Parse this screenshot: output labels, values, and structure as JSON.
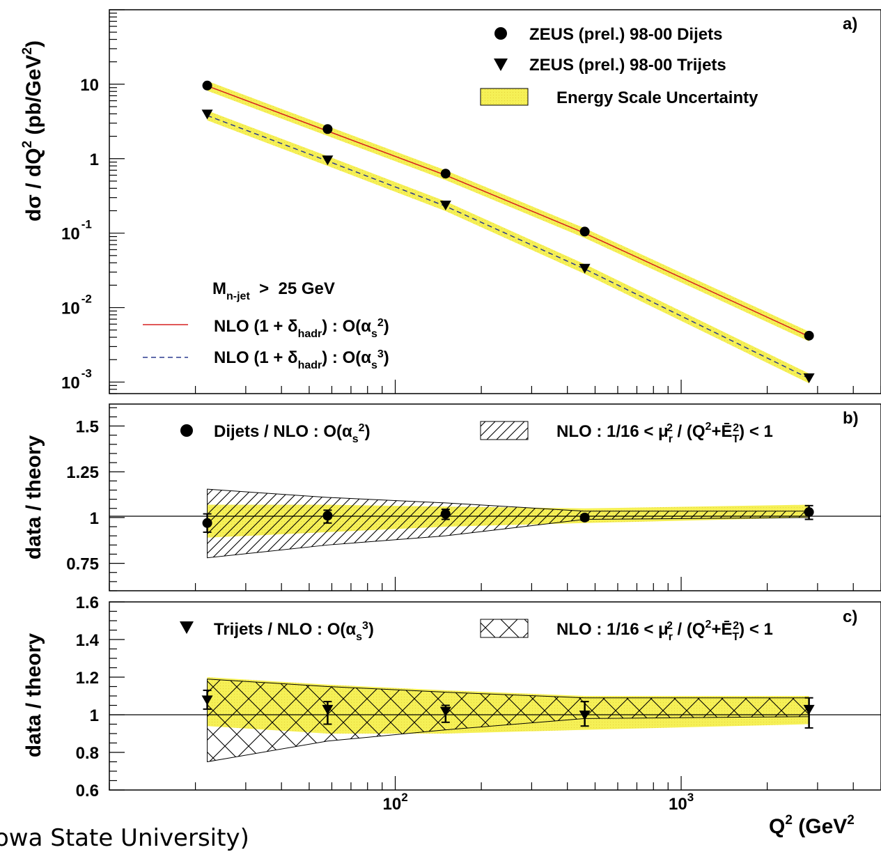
{
  "chart_data": [
    {
      "panel_label": "a)",
      "type": "scatter",
      "yscale": "log",
      "ylabel": "dσ / dQ",
      "ylabel_sup": "2",
      "ylabel_unit": "(pb/GeV",
      "ylabel_unit_sup": "2",
      "ylabel_close": ")",
      "ylim": [
        0.0007,
        100
      ],
      "yticks": [
        {
          "base": "10",
          "exp": "",
          "value": 10
        },
        {
          "base": "1",
          "exp": "",
          "value": 1
        },
        {
          "base": "10",
          "exp": "-1",
          "value": 0.1
        },
        {
          "base": "10",
          "exp": "-2",
          "value": 0.01
        },
        {
          "base": "10",
          "exp": "-3",
          "value": 0.001
        }
      ],
      "x": [
        22,
        58,
        150,
        460,
        2800
      ],
      "series": [
        {
          "name": "ZEUS (prel.) 98-00 Dijets",
          "marker": "circle",
          "values": [
            9.6,
            2.5,
            0.63,
            0.105,
            0.0042
          ]
        },
        {
          "name": "ZEUS (prel.) 98-00 Trijets",
          "marker": "triangle-down",
          "values": [
            4.0,
            0.97,
            0.24,
            0.034,
            0.00115
          ]
        }
      ],
      "curves": [
        {
          "style": "solid",
          "color": "#d62020",
          "values": [
            9.5,
            2.35,
            0.6,
            0.1,
            0.0041
          ]
        },
        {
          "style": "dashed",
          "color": "#2b3a8f",
          "values": [
            3.8,
            0.93,
            0.23,
            0.033,
            0.00112
          ]
        }
      ],
      "band_legend": "Energy Scale Uncertainty",
      "cut_label": {
        "prefix": "M",
        "sub": "n-jet",
        "suffix": "  >  25 GeV"
      },
      "nlo_legend": [
        {
          "a": "NLO (1 + δ",
          "sub": "hadr",
          "b": ") : O(α",
          "sub2": "s",
          "sup": "2",
          "c": ")"
        },
        {
          "a": "NLO (1 + δ",
          "sub": "hadr",
          "b": ") : O(α",
          "sub2": "s",
          "sup": "3",
          "c": ")"
        }
      ]
    },
    {
      "panel_label": "b)",
      "type": "scatter",
      "ylabel": "data / theory",
      "ylim": [
        0.6,
        1.62
      ],
      "yticks": [
        "0.75",
        "1",
        "1.25",
        "1.5"
      ],
      "x": [
        22,
        58,
        150,
        460,
        2800
      ],
      "series": [
        {
          "name_a": "Dijets / NLO : O(α",
          "name_sub": "s",
          "name_sup": "2",
          "name_b": ")",
          "values": [
            0.97,
            1.01,
            1.02,
            1.0,
            1.03
          ],
          "err_up": [
            0.05,
            0.03,
            0.025,
            0.015,
            0.035
          ],
          "err_down": [
            0.05,
            0.04,
            0.03,
            0.015,
            0.04
          ]
        }
      ],
      "energy_band": {
        "upper": [
          1.07,
          1.07,
          1.06,
          1.05,
          1.07
        ],
        "lower": [
          0.89,
          0.92,
          0.95,
          0.97,
          1.0
        ]
      },
      "scale_band": {
        "upper": [
          1.155,
          1.11,
          1.08,
          1.035,
          1.035
        ],
        "lower": [
          0.78,
          0.85,
          0.9,
          0.99,
          1.0
        ]
      },
      "scale_legend": {
        "a": "NLO : 1/16 < μ",
        "sub": "r",
        "sup": "2",
        "b": " / (Q",
        "sup2": "2",
        "c": "+Ē",
        "sub3": "T",
        "sup3": "2",
        "d": ") < 1"
      }
    },
    {
      "panel_label": "c)",
      "type": "scatter",
      "ylabel": "data / theory",
      "ylim": [
        0.6,
        1.6
      ],
      "yticks": [
        "0.6",
        "0.8",
        "1",
        "1.2",
        "1.4",
        "1.6"
      ],
      "x": [
        22,
        58,
        150,
        460,
        2800
      ],
      "series": [
        {
          "name_a": "Trijets / NLO : O(α",
          "name_sub": "s",
          "name_sup": "3",
          "name_b": ")",
          "values": [
            1.08,
            1.03,
            1.02,
            1.0,
            1.03
          ],
          "err_up": [
            0.05,
            0.04,
            0.03,
            0.07,
            0.06
          ],
          "err_down": [
            0.05,
            0.08,
            0.06,
            0.06,
            0.1
          ]
        }
      ],
      "energy_band": {
        "upper": [
          1.2,
          1.16,
          1.13,
          1.1,
          1.1
        ],
        "lower": [
          0.94,
          0.9,
          0.9,
          0.92,
          0.95
        ]
      },
      "scale_band": {
        "upper": [
          1.19,
          1.15,
          1.12,
          1.09,
          1.09
        ],
        "lower": [
          0.75,
          0.86,
          0.92,
          0.98,
          0.99
        ]
      },
      "scale_legend": {
        "a": "NLO : 1/16 < μ",
        "sub": "r",
        "sup": "2",
        "b": " / (Q",
        "sup2": "2",
        "c": "+Ē",
        "sub3": "T",
        "sup3": "2",
        "d": ") < 1"
      }
    }
  ],
  "xaxis": {
    "scale": "log",
    "xlim": [
      10,
      5000
    ],
    "ticks": [
      {
        "base": "10",
        "exp": "2",
        "value": 100
      },
      {
        "base": "10",
        "exp": "3",
        "value": 1000
      }
    ],
    "label": "Q",
    "label_sup": "2",
    "label_unit": " (GeV"
  },
  "colors": {
    "band": "#f5f056",
    "dijet_curve": "#d62020",
    "trijet_curve": "#2b3a8f"
  },
  "footer": "owa State University)"
}
